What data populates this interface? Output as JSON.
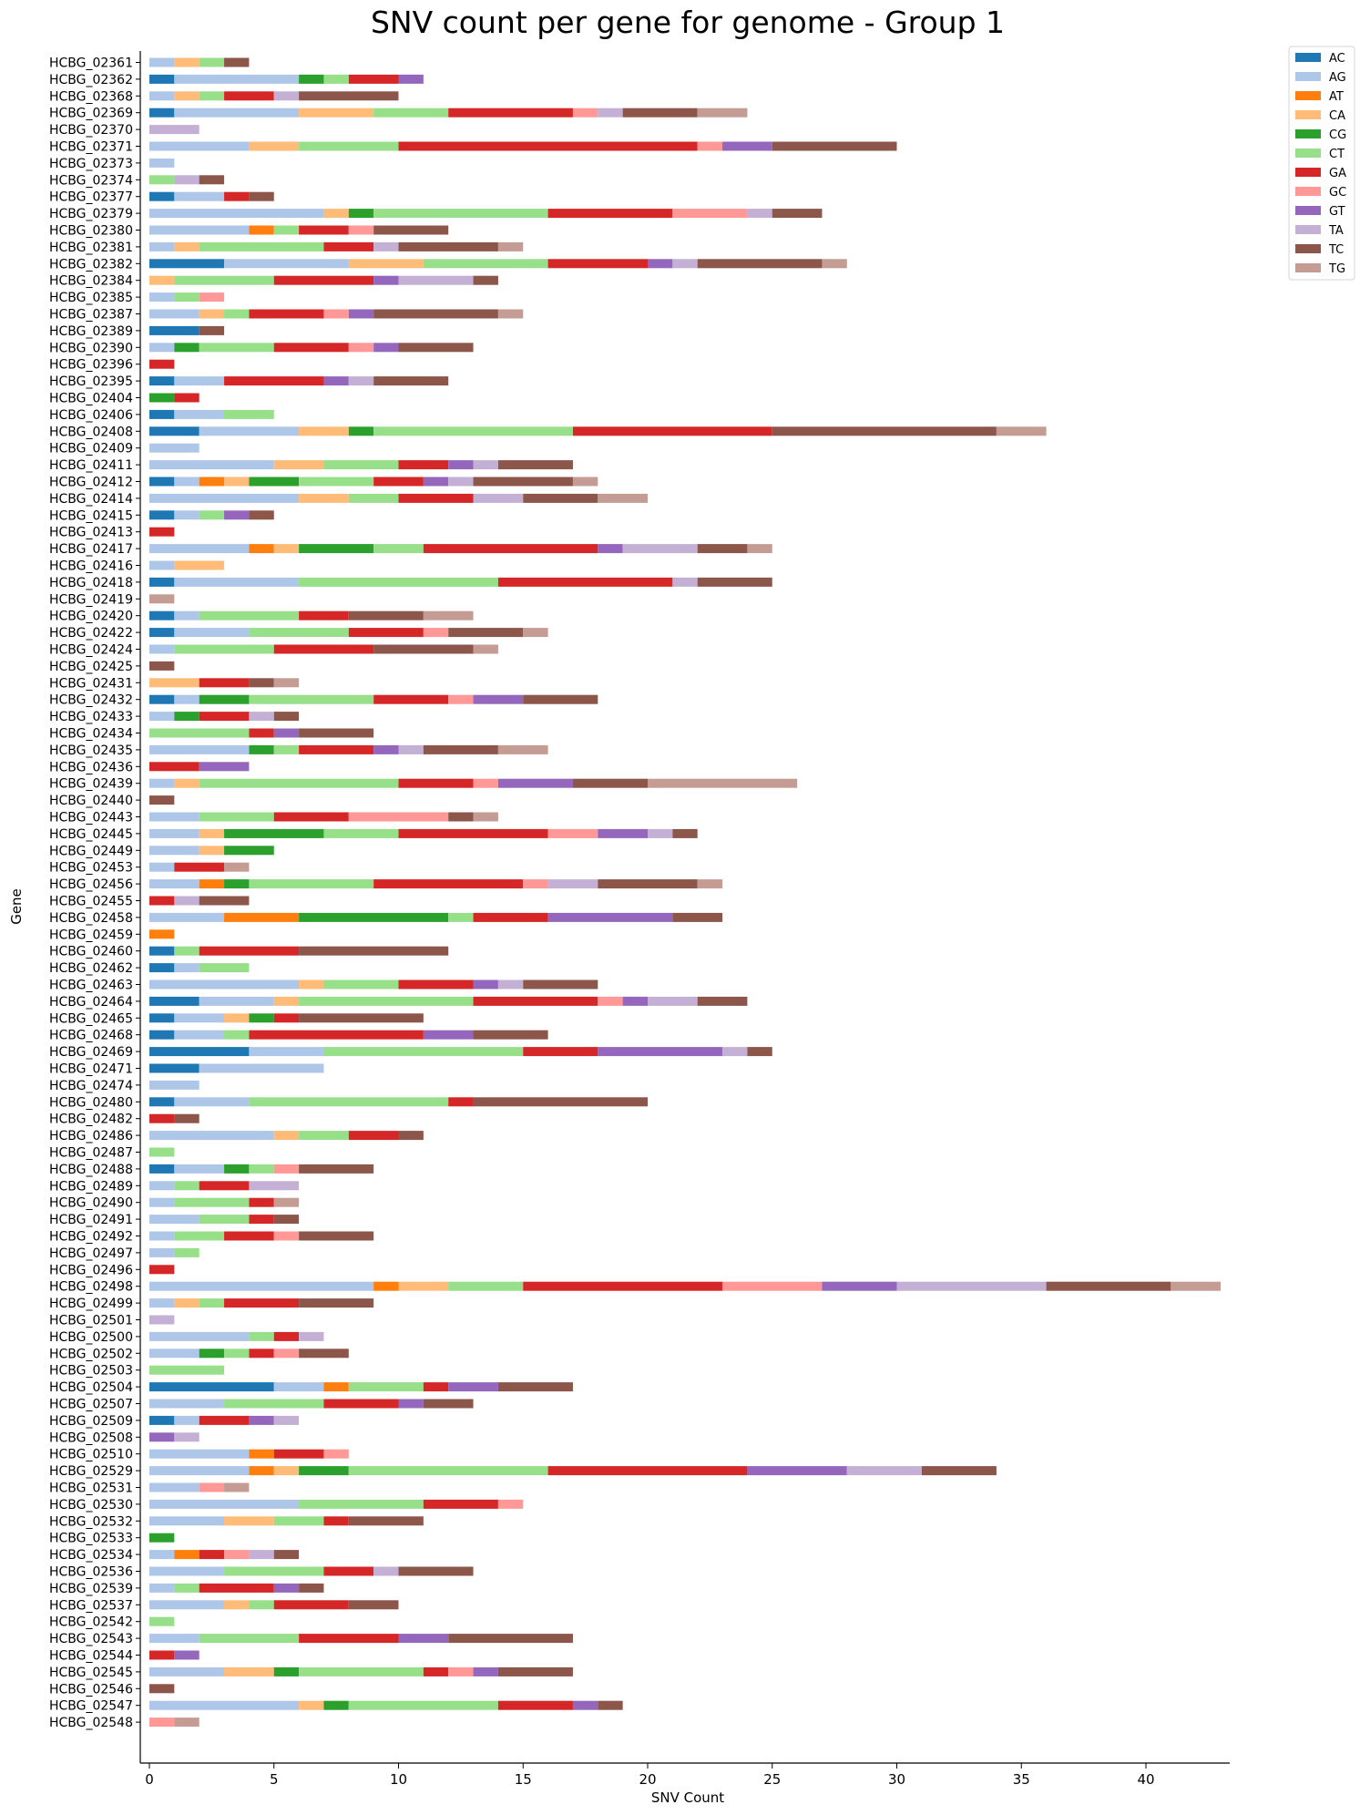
{
  "chart_data": {
    "type": "bar",
    "orientation": "horizontal",
    "stacked": true,
    "title": "SNV count per gene for genome - Group 1",
    "xlabel": "SNV Count",
    "ylabel": "Gene",
    "xlim": [
      0,
      43.5
    ],
    "xticks": [
      0,
      5,
      10,
      15,
      20,
      25,
      30,
      35,
      40
    ],
    "grid": false,
    "legend_position": "top-right",
    "series_names": [
      "AC",
      "AG",
      "AT",
      "CA",
      "CG",
      "CT",
      "GA",
      "GC",
      "GT",
      "TA",
      "TC",
      "TG"
    ],
    "colors": {
      "AC": "#1f77b4",
      "AG": "#aec7e8",
      "AT": "#ff7f0e",
      "CA": "#ffbb78",
      "CG": "#2ca02c",
      "CT": "#98df8a",
      "GA": "#d62728",
      "GC": "#ff9896",
      "GT": "#9467bd",
      "TA": "#c5b0d5",
      "TC": "#8c564b",
      "TG": "#c49c94"
    },
    "categories": [
      "HCBG_02361",
      "HCBG_02362",
      "HCBG_02368",
      "HCBG_02369",
      "HCBG_02370",
      "HCBG_02371",
      "HCBG_02373",
      "HCBG_02374",
      "HCBG_02377",
      "HCBG_02379",
      "HCBG_02380",
      "HCBG_02381",
      "HCBG_02382",
      "HCBG_02384",
      "HCBG_02385",
      "HCBG_02387",
      "HCBG_02389",
      "HCBG_02390",
      "HCBG_02396",
      "HCBG_02395",
      "HCBG_02404",
      "HCBG_02406",
      "HCBG_02408",
      "HCBG_02409",
      "HCBG_02411",
      "HCBG_02412",
      "HCBG_02414",
      "HCBG_02415",
      "HCBG_02413",
      "HCBG_02417",
      "HCBG_02416",
      "HCBG_02418",
      "HCBG_02419",
      "HCBG_02420",
      "HCBG_02422",
      "HCBG_02424",
      "HCBG_02425",
      "HCBG_02431",
      "HCBG_02432",
      "HCBG_02433",
      "HCBG_02434",
      "HCBG_02435",
      "HCBG_02436",
      "HCBG_02439",
      "HCBG_02440",
      "HCBG_02443",
      "HCBG_02445",
      "HCBG_02449",
      "HCBG_02453",
      "HCBG_02456",
      "HCBG_02455",
      "HCBG_02458",
      "HCBG_02459",
      "HCBG_02460",
      "HCBG_02462",
      "HCBG_02463",
      "HCBG_02464",
      "HCBG_02465",
      "HCBG_02468",
      "HCBG_02469",
      "HCBG_02471",
      "HCBG_02474",
      "HCBG_02480",
      "HCBG_02482",
      "HCBG_02486",
      "HCBG_02487",
      "HCBG_02488",
      "HCBG_02489",
      "HCBG_02490",
      "HCBG_02491",
      "HCBG_02492",
      "HCBG_02497",
      "HCBG_02496",
      "HCBG_02498",
      "HCBG_02499",
      "HCBG_02501",
      "HCBG_02500",
      "HCBG_02502",
      "HCBG_02503",
      "HCBG_02504",
      "HCBG_02507",
      "HCBG_02509",
      "HCBG_02508",
      "HCBG_02510",
      "HCBG_02529",
      "HCBG_02531",
      "HCBG_02530",
      "HCBG_02532",
      "HCBG_02533",
      "HCBG_02534",
      "HCBG_02536",
      "HCBG_02539",
      "HCBG_02537",
      "HCBG_02542",
      "HCBG_02543",
      "HCBG_02544",
      "HCBG_02545",
      "HCBG_02546",
      "HCBG_02547",
      "HCBG_02548"
    ],
    "series": [
      {
        "name": "AC",
        "values": [
          0,
          1,
          0,
          1,
          0,
          0,
          0,
          0,
          1,
          0,
          0,
          0,
          3,
          0,
          0,
          0,
          2,
          0,
          0,
          1,
          0,
          1,
          2,
          0,
          0,
          1,
          0,
          1,
          0,
          0,
          0,
          1,
          0,
          1,
          1,
          0,
          0,
          0,
          1,
          0,
          0,
          0,
          0,
          0,
          0,
          0,
          0,
          0,
          0,
          0,
          0,
          0,
          0,
          1,
          1,
          0,
          2,
          1,
          1,
          4,
          2,
          0,
          1,
          0,
          0,
          0,
          1,
          0,
          0,
          0,
          0,
          0,
          0,
          0,
          0,
          0,
          0,
          0,
          0,
          5,
          0,
          1,
          0,
          0,
          0,
          0,
          0,
          0,
          0,
          0,
          0,
          0,
          0,
          0,
          0,
          0,
          0,
          0,
          0,
          0
        ]
      },
      {
        "name": "AG",
        "values": [
          1,
          5,
          1,
          5,
          0,
          4,
          1,
          0,
          2,
          7,
          4,
          1,
          5,
          0,
          1,
          2,
          0,
          1,
          0,
          2,
          0,
          2,
          4,
          2,
          5,
          1,
          6,
          1,
          0,
          4,
          1,
          5,
          0,
          1,
          3,
          1,
          0,
          0,
          1,
          1,
          0,
          4,
          0,
          1,
          0,
          2,
          2,
          2,
          1,
          2,
          0,
          3,
          0,
          0,
          1,
          6,
          3,
          2,
          2,
          3,
          5,
          2,
          3,
          0,
          5,
          0,
          2,
          1,
          1,
          2,
          1,
          1,
          0,
          9,
          1,
          0,
          4,
          2,
          0,
          2,
          3,
          1,
          0,
          4,
          4,
          2,
          6,
          3,
          0,
          1,
          3,
          1,
          3,
          0,
          2,
          0,
          3,
          0,
          6,
          0
        ]
      },
      {
        "name": "AT",
        "values": [
          0,
          0,
          0,
          0,
          0,
          0,
          0,
          0,
          0,
          0,
          1,
          0,
          0,
          0,
          0,
          0,
          0,
          0,
          0,
          0,
          0,
          0,
          0,
          0,
          0,
          1,
          0,
          0,
          0,
          1,
          0,
          0,
          0,
          0,
          0,
          0,
          0,
          0,
          0,
          0,
          0,
          0,
          0,
          0,
          0,
          0,
          0,
          0,
          0,
          1,
          0,
          3,
          1,
          0,
          0,
          0,
          0,
          0,
          0,
          0,
          0,
          0,
          0,
          0,
          0,
          0,
          0,
          0,
          0,
          0,
          0,
          0,
          0,
          1,
          0,
          0,
          0,
          0,
          0,
          1,
          0,
          0,
          0,
          1,
          1,
          0,
          0,
          0,
          0,
          1,
          0,
          0,
          0,
          0,
          0,
          0,
          0,
          0,
          0,
          0
        ]
      },
      {
        "name": "CA",
        "values": [
          1,
          0,
          1,
          3,
          0,
          2,
          0,
          0,
          0,
          1,
          0,
          1,
          3,
          1,
          0,
          1,
          0,
          0,
          0,
          0,
          0,
          0,
          2,
          0,
          2,
          1,
          2,
          0,
          0,
          1,
          2,
          0,
          0,
          0,
          0,
          0,
          0,
          2,
          0,
          0,
          0,
          0,
          0,
          1,
          0,
          0,
          1,
          1,
          0,
          0,
          0,
          0,
          0,
          0,
          0,
          1,
          1,
          1,
          0,
          0,
          0,
          0,
          0,
          0,
          1,
          0,
          0,
          0,
          0,
          0,
          0,
          0,
          0,
          2,
          1,
          0,
          0,
          0,
          0,
          0,
          0,
          0,
          0,
          0,
          1,
          0,
          0,
          2,
          0,
          0,
          0,
          0,
          1,
          0,
          0,
          0,
          2,
          0,
          1,
          0
        ]
      },
      {
        "name": "CG",
        "values": [
          0,
          1,
          0,
          0,
          0,
          0,
          0,
          0,
          0,
          1,
          0,
          0,
          0,
          0,
          0,
          0,
          0,
          1,
          0,
          0,
          1,
          0,
          1,
          0,
          0,
          2,
          0,
          0,
          0,
          3,
          0,
          0,
          0,
          0,
          0,
          0,
          0,
          0,
          2,
          1,
          0,
          1,
          0,
          0,
          0,
          0,
          4,
          2,
          0,
          1,
          0,
          6,
          0,
          0,
          0,
          0,
          0,
          1,
          0,
          0,
          0,
          0,
          0,
          0,
          0,
          0,
          1,
          0,
          0,
          0,
          0,
          0,
          0,
          0,
          0,
          0,
          0,
          1,
          0,
          0,
          0,
          0,
          0,
          0,
          2,
          0,
          0,
          0,
          1,
          0,
          0,
          0,
          0,
          0,
          0,
          0,
          1,
          0,
          1,
          0
        ]
      },
      {
        "name": "CT",
        "values": [
          1,
          1,
          1,
          3,
          0,
          4,
          0,
          1,
          0,
          7,
          1,
          5,
          5,
          4,
          1,
          1,
          0,
          3,
          0,
          0,
          0,
          2,
          8,
          0,
          3,
          3,
          2,
          1,
          0,
          2,
          0,
          8,
          0,
          4,
          4,
          4,
          0,
          0,
          5,
          0,
          4,
          1,
          0,
          8,
          0,
          3,
          3,
          0,
          0,
          5,
          0,
          1,
          0,
          1,
          2,
          3,
          7,
          0,
          1,
          8,
          0,
          0,
          8,
          0,
          2,
          1,
          1,
          1,
          3,
          2,
          2,
          1,
          0,
          3,
          1,
          0,
          1,
          1,
          3,
          3,
          4,
          0,
          0,
          0,
          8,
          0,
          5,
          2,
          0,
          0,
          4,
          1,
          1,
          1,
          4,
          0,
          5,
          0,
          6,
          0
        ]
      },
      {
        "name": "GA",
        "values": [
          0,
          2,
          2,
          5,
          0,
          12,
          0,
          0,
          1,
          5,
          2,
          2,
          4,
          4,
          0,
          3,
          0,
          3,
          1,
          4,
          1,
          0,
          8,
          0,
          2,
          2,
          3,
          0,
          1,
          7,
          0,
          7,
          0,
          2,
          3,
          4,
          0,
          2,
          3,
          2,
          1,
          3,
          2,
          3,
          0,
          3,
          6,
          0,
          2,
          6,
          1,
          3,
          0,
          4,
          0,
          3,
          5,
          1,
          7,
          3,
          0,
          0,
          1,
          1,
          2,
          0,
          0,
          2,
          1,
          1,
          2,
          0,
          1,
          8,
          3,
          0,
          1,
          1,
          0,
          1,
          3,
          2,
          0,
          2,
          8,
          0,
          3,
          1,
          0,
          1,
          2,
          3,
          3,
          0,
          4,
          1,
          1,
          0,
          3,
          0
        ]
      },
      {
        "name": "GC",
        "values": [
          0,
          0,
          0,
          1,
          0,
          1,
          0,
          0,
          0,
          3,
          1,
          0,
          0,
          0,
          1,
          1,
          0,
          1,
          0,
          0,
          0,
          0,
          0,
          0,
          0,
          0,
          0,
          0,
          0,
          0,
          0,
          0,
          0,
          0,
          1,
          0,
          0,
          0,
          1,
          0,
          0,
          0,
          0,
          1,
          0,
          4,
          2,
          0,
          0,
          1,
          0,
          0,
          0,
          0,
          0,
          0,
          1,
          0,
          0,
          0,
          0,
          0,
          0,
          0,
          0,
          0,
          1,
          0,
          0,
          0,
          1,
          0,
          0,
          4,
          0,
          0,
          0,
          1,
          0,
          0,
          0,
          0,
          0,
          1,
          0,
          1,
          1,
          0,
          0,
          1,
          0,
          0,
          0,
          0,
          0,
          0,
          1,
          0,
          0,
          1
        ]
      },
      {
        "name": "GT",
        "values": [
          0,
          1,
          0,
          0,
          0,
          2,
          0,
          0,
          0,
          0,
          0,
          0,
          1,
          1,
          0,
          1,
          0,
          1,
          0,
          1,
          0,
          0,
          0,
          0,
          1,
          1,
          0,
          1,
          0,
          1,
          0,
          0,
          0,
          0,
          0,
          0,
          0,
          0,
          2,
          0,
          1,
          1,
          2,
          3,
          0,
          0,
          2,
          0,
          0,
          0,
          0,
          5,
          0,
          0,
          0,
          1,
          1,
          0,
          2,
          5,
          0,
          0,
          0,
          0,
          0,
          0,
          0,
          0,
          0,
          0,
          0,
          0,
          0,
          3,
          0,
          0,
          0,
          0,
          0,
          2,
          1,
          1,
          1,
          0,
          4,
          0,
          0,
          0,
          0,
          0,
          0,
          1,
          0,
          0,
          2,
          1,
          1,
          0,
          1,
          0
        ]
      },
      {
        "name": "TA",
        "values": [
          0,
          0,
          1,
          1,
          2,
          0,
          0,
          1,
          0,
          1,
          0,
          1,
          1,
          3,
          0,
          0,
          0,
          0,
          0,
          1,
          0,
          0,
          0,
          0,
          1,
          1,
          2,
          0,
          0,
          3,
          0,
          1,
          0,
          0,
          0,
          0,
          0,
          0,
          0,
          1,
          0,
          1,
          0,
          0,
          0,
          0,
          1,
          0,
          0,
          2,
          1,
          0,
          0,
          0,
          0,
          1,
          2,
          0,
          0,
          1,
          0,
          0,
          0,
          0,
          0,
          0,
          0,
          2,
          0,
          0,
          0,
          0,
          0,
          6,
          0,
          1,
          1,
          0,
          0,
          0,
          0,
          1,
          1,
          0,
          3,
          0,
          0,
          0,
          0,
          1,
          1,
          0,
          0,
          0,
          0,
          0,
          0,
          0,
          0,
          0
        ]
      },
      {
        "name": "TC",
        "values": [
          1,
          0,
          4,
          3,
          0,
          5,
          0,
          1,
          1,
          2,
          3,
          4,
          5,
          1,
          0,
          5,
          1,
          3,
          0,
          3,
          0,
          0,
          9,
          0,
          3,
          4,
          3,
          1,
          0,
          2,
          0,
          3,
          0,
          3,
          3,
          4,
          1,
          1,
          3,
          1,
          3,
          3,
          0,
          3,
          1,
          1,
          1,
          0,
          0,
          4,
          2,
          2,
          0,
          6,
          0,
          3,
          2,
          5,
          3,
          1,
          0,
          0,
          7,
          1,
          1,
          0,
          3,
          0,
          0,
          1,
          3,
          0,
          0,
          5,
          3,
          0,
          0,
          2,
          0,
          3,
          2,
          0,
          0,
          0,
          3,
          0,
          0,
          3,
          0,
          1,
          3,
          1,
          2,
          0,
          5,
          0,
          3,
          1,
          1,
          0
        ]
      },
      {
        "name": "TG",
        "values": [
          0,
          0,
          0,
          2,
          0,
          0,
          0,
          0,
          0,
          0,
          0,
          1,
          1,
          0,
          0,
          1,
          0,
          0,
          0,
          0,
          0,
          0,
          2,
          0,
          0,
          1,
          2,
          0,
          0,
          1,
          0,
          0,
          1,
          2,
          1,
          1,
          0,
          1,
          0,
          0,
          0,
          2,
          0,
          6,
          0,
          1,
          0,
          0,
          1,
          1,
          0,
          0,
          0,
          0,
          0,
          0,
          0,
          0,
          0,
          0,
          0,
          0,
          0,
          0,
          0,
          0,
          0,
          0,
          1,
          0,
          0,
          0,
          0,
          2,
          0,
          0,
          0,
          0,
          0,
          0,
          0,
          0,
          0,
          0,
          0,
          1,
          0,
          0,
          0,
          0,
          0,
          0,
          0,
          0,
          0,
          0,
          0,
          0,
          0,
          1
        ]
      }
    ]
  }
}
